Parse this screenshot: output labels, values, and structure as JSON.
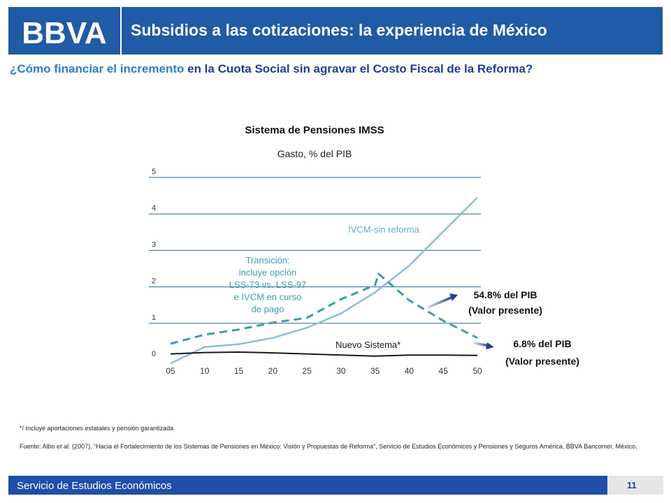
{
  "header": {
    "logo_text": "BBVA",
    "title": "Subsidios a las cotizaciones: la experiencia de México"
  },
  "subtitle": {
    "part1": "¿Cómo financiar el incremento",
    "part2": " en la Cuota Social sin agravar el Costo Fiscal de la Reforma?"
  },
  "chart_data": {
    "type": "line",
    "title": "Sistema de Pensiones IMSS",
    "subtitle": "Gasto, % del PIB",
    "x": [
      5,
      10,
      15,
      20,
      25,
      30,
      35,
      40,
      45,
      50
    ],
    "x_tick_labels": [
      "05",
      "10",
      "15",
      "20",
      "25",
      "30",
      "35",
      "40",
      "45",
      "50"
    ],
    "y_ticks": [
      0,
      1,
      2,
      3,
      4,
      5
    ],
    "ylim": [
      0,
      5
    ],
    "xlim": [
      5,
      50
    ],
    "grid": true,
    "series": [
      {
        "name": "IVCM-sin reforma",
        "style": "solid",
        "color": "#8fbcd6",
        "points": [
          [
            5,
            -0.1
          ],
          [
            10,
            0.35
          ],
          [
            15,
            0.43
          ],
          [
            20,
            0.6
          ],
          [
            25,
            0.88
          ],
          [
            30,
            1.27
          ],
          [
            35,
            1.85
          ],
          [
            40,
            2.58
          ],
          [
            45,
            3.52
          ],
          [
            50,
            4.45
          ]
        ]
      },
      {
        "name": "Transición:\nincluye opción\nLSS-73 vs. LSS-97\ne IVCM en curso\nde pago",
        "style": "dashed",
        "color": "#3f9ab0",
        "points": [
          [
            5,
            0.44
          ],
          [
            10,
            0.69
          ],
          [
            15,
            0.83
          ],
          [
            20,
            1.02
          ],
          [
            25,
            1.15
          ],
          [
            30,
            1.66
          ],
          [
            35,
            2.05
          ],
          [
            35.5,
            2.36
          ],
          [
            40,
            1.63
          ],
          [
            45,
            1.07
          ],
          [
            50,
            0.6
          ]
        ]
      },
      {
        "name": "Nuevo Sistema*",
        "style": "solid",
        "color": "#1a1a1a",
        "points": [
          [
            5,
            0.16
          ],
          [
            10,
            0.2
          ],
          [
            15,
            0.21
          ],
          [
            20,
            0.19
          ],
          [
            25,
            0.16
          ],
          [
            30,
            0.13
          ],
          [
            35,
            0.1
          ],
          [
            40,
            0.13
          ],
          [
            45,
            0.13
          ],
          [
            50,
            0.12
          ]
        ]
      }
    ],
    "annotations": [
      {
        "line1": "54.8% del PIB",
        "line2": "(Valor presente)",
        "points_to": "Transición"
      },
      {
        "line1": "6.8% del PIB",
        "line2": "(Valor presente)",
        "points_to": "Nuevo Sistema*"
      }
    ]
  },
  "footnote": "*/ Incluye aportaciones estatales y pensión garantizada",
  "source": {
    "prefix": "Fuente: Albo ",
    "etal": "et al.",
    "rest": " (2007), “Hacia el Fortalecimiento de los Sistemas de Pensiones en México: Visión y Propuestas de Reforma”, Servicio de Estudios Económicos y Pensiones y Seguros América, BBVA Bancomer, México."
  },
  "footer": {
    "text": "Servicio de Estudios Económicos",
    "page": "11"
  },
  "colors": {
    "brand_blue": "#1f5ba6",
    "footer_blue": "#1f4fa8",
    "subtitle_dark": "#1f3f8f",
    "subtitle_highlight": "#2c7fc4",
    "gridline": "#2b6a93"
  }
}
